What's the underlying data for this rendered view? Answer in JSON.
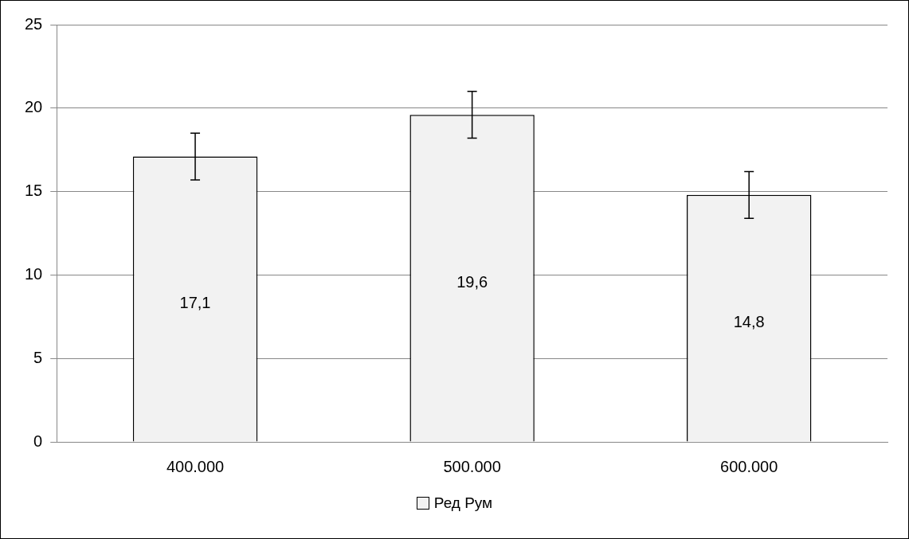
{
  "chart_data": {
    "type": "bar",
    "categories": [
      "400.000",
      "500.000",
      "600.000"
    ],
    "series": [
      {
        "name": "Ред Рум",
        "color": "#f2f2f2",
        "values": [
          17.1,
          19.6,
          14.8
        ],
        "errors": [
          1.4,
          1.4,
          1.4
        ],
        "value_labels": [
          "17,1",
          "19,6",
          "14,8"
        ]
      }
    ],
    "ylim": [
      0,
      25
    ],
    "yticks": [
      0,
      5,
      10,
      15,
      20,
      25
    ],
    "grid": "y",
    "legend": "bottom"
  }
}
